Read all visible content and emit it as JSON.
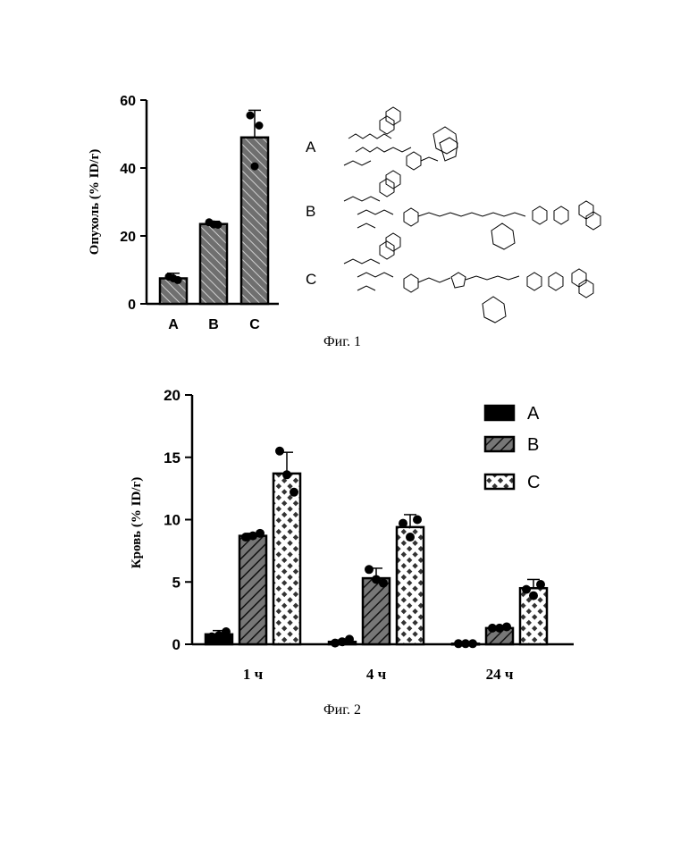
{
  "figure1": {
    "caption": "Фиг. 1",
    "chart_data": {
      "type": "bar",
      "ylabel": "Опухоль (% ID/г)",
      "categories": [
        "A",
        "B",
        "C"
      ],
      "values": [
        7.5,
        23.5,
        49
      ],
      "errors": [
        1.5,
        0.8,
        8
      ],
      "points": [
        [
          8,
          7,
          7.5
        ],
        [
          24,
          23.3,
          23.4
        ],
        [
          55.5,
          52.5,
          40.5
        ]
      ],
      "ylim": [
        0,
        60
      ],
      "yticks": [
        "0",
        "20",
        "40",
        "60"
      ],
      "bar_color": "#7a7a7a"
    },
    "structure_labels": [
      "A",
      "B",
      "C"
    ]
  },
  "figure2": {
    "caption": "Фиг. 2",
    "chart_data": {
      "type": "bar",
      "ylabel": "Кровь (% ID/г)",
      "categories": [
        "1 ч",
        "4 ч",
        "24 ч"
      ],
      "series": [
        {
          "name": "A",
          "values": [
            0.8,
            0.2,
            0.05
          ],
          "errors": [
            0.3,
            0.15,
            0.05
          ],
          "points": [
            [
              0.6,
              1.0,
              0.7
            ],
            [
              0.1,
              0.4,
              0.2
            ],
            [
              0.05,
              0.05,
              0.05
            ]
          ],
          "pattern": "solid-black"
        },
        {
          "name": "B",
          "values": [
            8.7,
            5.3,
            1.3
          ],
          "errors": [
            0.2,
            0.8,
            0.15
          ],
          "points": [
            [
              8.6,
              8.9,
              8.7
            ],
            [
              6.0,
              4.9,
              5.2
            ],
            [
              1.3,
              1.4,
              1.3
            ]
          ],
          "pattern": "diagonal-hatch"
        },
        {
          "name": "C",
          "values": [
            13.7,
            9.4,
            4.5
          ],
          "errors": [
            1.7,
            1.0,
            0.7
          ],
          "points": [
            [
              15.5,
              12.2,
              13.6
            ],
            [
              9.7,
              10.0,
              8.6
            ],
            [
              4.4,
              4.8,
              3.9
            ]
          ],
          "pattern": "crosshatch"
        }
      ],
      "ylim": [
        0,
        20
      ],
      "yticks": [
        "0",
        "5",
        "10",
        "15",
        "20"
      ],
      "legend": "top-right"
    }
  }
}
